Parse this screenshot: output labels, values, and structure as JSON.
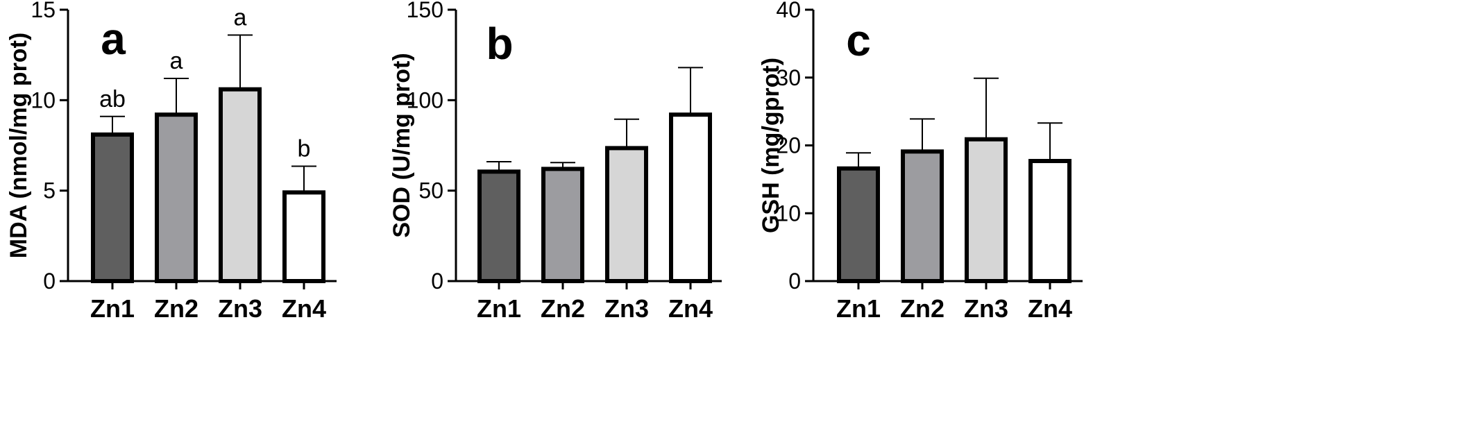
{
  "chart_data": [
    {
      "type": "bar",
      "panel_label": "a",
      "ylabel": "MDA (nmol/mg prot)",
      "categories": [
        "Zn1",
        "Zn2",
        "Zn3",
        "Zn4"
      ],
      "values": [
        8.1,
        9.2,
        10.6,
        4.9
      ],
      "errors": [
        1.0,
        2.0,
        3.0,
        1.45
      ],
      "significance": [
        "ab",
        "a",
        "a",
        "b"
      ],
      "ylim": [
        0,
        15
      ],
      "yticks": [
        "0",
        "5",
        "10",
        "15"
      ],
      "bar_colors": [
        "#5f5f5f",
        "#9c9ca0",
        "#d6d6d6",
        "#ffffff"
      ]
    },
    {
      "type": "bar",
      "panel_label": "b",
      "ylabel": "SOD (U/mg prot)",
      "categories": [
        "Zn1",
        "Zn2",
        "Zn3",
        "Zn4"
      ],
      "values": [
        60.5,
        62.0,
        73.5,
        92.0
      ],
      "errors": [
        5.5,
        3.5,
        16.0,
        26.0
      ],
      "significance": [],
      "ylim": [
        0,
        150
      ],
      "yticks": [
        "0",
        "50",
        "100",
        "150"
      ],
      "bar_colors": [
        "#5f5f5f",
        "#9c9ca0",
        "#d6d6d6",
        "#ffffff"
      ]
    },
    {
      "type": "bar",
      "panel_label": "c",
      "ylabel": "GSH (mg/gprot)",
      "categories": [
        "Zn1",
        "Zn2",
        "Zn3",
        "Zn4"
      ],
      "values": [
        16.6,
        19.1,
        20.9,
        17.7
      ],
      "errors": [
        2.3,
        4.8,
        9.0,
        5.6
      ],
      "significance": [],
      "ylim": [
        0,
        40
      ],
      "yticks": [
        "0",
        "10",
        "20",
        "30",
        "40"
      ],
      "bar_colors": [
        "#5f5f5f",
        "#9c9ca0",
        "#d6d6d6",
        "#ffffff"
      ]
    }
  ]
}
